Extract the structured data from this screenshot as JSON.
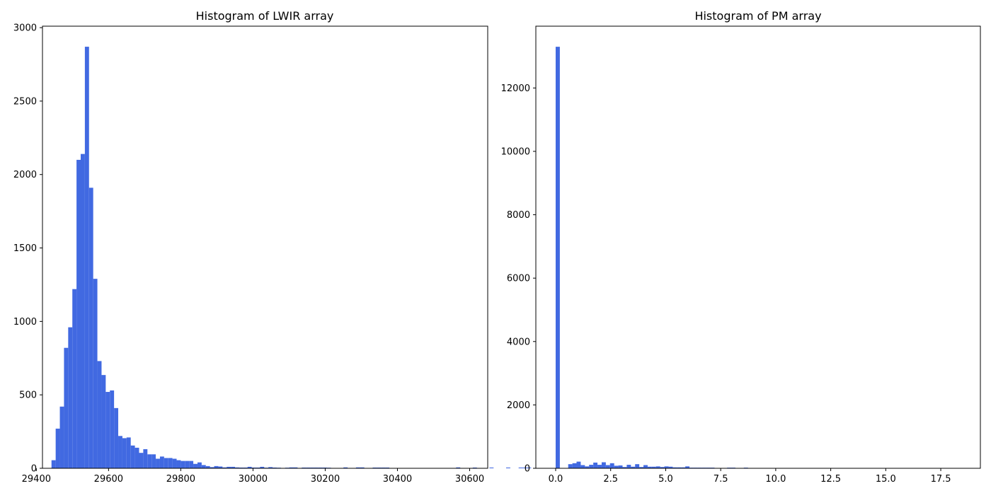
{
  "figure": {
    "background": "#ffffff",
    "bar_color": "#4169e1"
  },
  "chart_data": [
    {
      "type": "bar",
      "title": "Histogram of LWIR array",
      "xlabel": "",
      "ylabel": "",
      "xlim": [
        29417,
        30650
      ],
      "ylim": [
        0,
        3010
      ],
      "xticks": [
        29400,
        29600,
        29800,
        30000,
        30200,
        30400,
        30600
      ],
      "xtick_labels": [
        "29400",
        "29600",
        "29800",
        "30000",
        "30200",
        "30400",
        "30600"
      ],
      "yticks": [
        0,
        500,
        1000,
        1500,
        2000,
        2500,
        3000
      ],
      "ytick_labels": [
        "0",
        "500",
        "1000",
        "1500",
        "2000",
        "2500",
        "3000"
      ],
      "grid": false,
      "bin_start": 29442,
      "bin_width": 11.55,
      "values": [
        55,
        270,
        420,
        820,
        960,
        1220,
        2100,
        2140,
        2870,
        1910,
        1290,
        730,
        635,
        520,
        530,
        410,
        220,
        205,
        210,
        155,
        140,
        105,
        130,
        95,
        95,
        65,
        80,
        70,
        70,
        65,
        55,
        50,
        50,
        50,
        30,
        40,
        22,
        15,
        8,
        15,
        12,
        6,
        10,
        10,
        6,
        5,
        5,
        10,
        5,
        5,
        10,
        4,
        8,
        5,
        4,
        0,
        4,
        6,
        6,
        0,
        5,
        5,
        5,
        5,
        5,
        5,
        4,
        0,
        0,
        0,
        6,
        0,
        0,
        6,
        6,
        0,
        0,
        5,
        5,
        5,
        5,
        0,
        0,
        0,
        0,
        0,
        0,
        0,
        0,
        0,
        0,
        0,
        0,
        0,
        0,
        0,
        0,
        6,
        0,
        0,
        0,
        5,
        0,
        0,
        0,
        5,
        0,
        0,
        0,
        5,
        0,
        0,
        5,
        5,
        5,
        0,
        0,
        0,
        0,
        0
      ]
    },
    {
      "type": "bar",
      "title": "Histogram of PM array",
      "xlabel": "",
      "ylabel": "",
      "xlim": [
        -0.9,
        19.3
      ],
      "ylim": [
        0,
        13950
      ],
      "xticks": [
        0,
        2.5,
        5,
        7.5,
        10,
        12.5,
        15,
        17.5
      ],
      "xtick_labels": [
        "0.0",
        "2.5",
        "5.0",
        "7.5",
        "10.0",
        "12.5",
        "15.0",
        "17.5"
      ],
      "yticks": [
        0,
        2000,
        4000,
        6000,
        8000,
        10000,
        12000
      ],
      "ytick_labels": [
        "0",
        "2000",
        "4000",
        "6000",
        "8000",
        "10000",
        "12000"
      ],
      "grid": false,
      "bin_start": 0.0,
      "bin_width": 0.19,
      "values": [
        13300,
        0,
        0,
        130,
        160,
        210,
        100,
        60,
        110,
        180,
        110,
        190,
        100,
        160,
        80,
        90,
        40,
        110,
        50,
        130,
        40,
        100,
        50,
        50,
        60,
        40,
        60,
        50,
        30,
        30,
        30,
        60,
        20,
        20,
        20,
        20,
        20,
        20,
        10,
        10,
        10,
        20,
        20,
        10,
        10,
        20,
        10,
        10,
        10,
        0,
        0,
        0,
        0,
        0,
        0,
        0,
        0,
        0,
        0,
        0,
        0,
        0,
        0,
        0,
        0,
        0,
        0,
        0,
        0,
        0,
        0,
        0,
        0,
        0,
        0,
        0,
        0,
        0,
        0,
        0,
        0,
        0,
        0,
        0,
        0,
        0,
        0,
        0,
        0,
        0,
        0,
        0,
        0,
        0,
        0,
        0,
        0,
        0,
        0,
        0
      ]
    }
  ]
}
